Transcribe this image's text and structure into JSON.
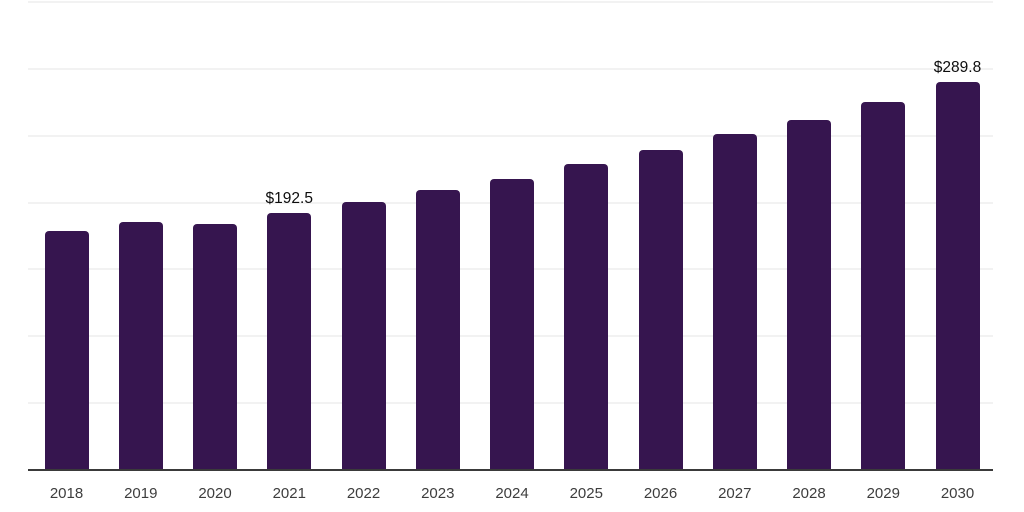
{
  "chart_data": {
    "type": "bar",
    "title": "",
    "xlabel": "",
    "ylabel": "",
    "categories": [
      "2018",
      "2019",
      "2020",
      "2021",
      "2022",
      "2023",
      "2024",
      "2025",
      "2026",
      "2027",
      "2028",
      "2029",
      "2030"
    ],
    "values": [
      179.0,
      185.5,
      184.0,
      192.5,
      200.5,
      209.5,
      218.0,
      228.5,
      239.0,
      251.0,
      261.5,
      275.5,
      289.8
    ],
    "data_labels": [
      null,
      null,
      null,
      "$192.5",
      null,
      null,
      null,
      null,
      null,
      null,
      null,
      null,
      "$289.8"
    ],
    "ylim": [
      0,
      350
    ],
    "gridline_step": 50,
    "grid": true,
    "legend": false,
    "currency_unit": "$"
  },
  "colors": {
    "bar": "#36154F",
    "axis": "#3a3a3a",
    "gridline": "#f2f2f2",
    "tick_label": "#3d3d3d",
    "data_label": "#0d0d0d",
    "background": "#ffffff"
  }
}
